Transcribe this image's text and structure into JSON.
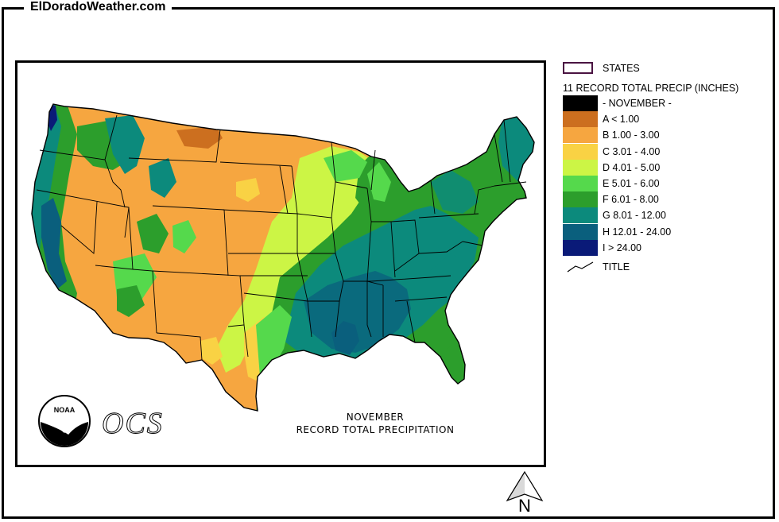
{
  "site_title": "ElDoradoWeather.com",
  "caption": {
    "line1": "NOVEMBER",
    "line2": "RECORD TOTAL PRECIPITATION"
  },
  "logos": {
    "noaa": "NOAA",
    "ocs": "OCS"
  },
  "legend": {
    "states_label": "STATES",
    "states_color": "#4a1442",
    "title": "11 RECORD TOTAL PRECIP (INCHES)",
    "items": [
      {
        "label": "- NOVEMBER -",
        "color": "#000000"
      },
      {
        "label": "A < 1.00",
        "color": "#cc6f1f"
      },
      {
        "label": "B 1.00 - 3.00",
        "color": "#f6a640"
      },
      {
        "label": "C 3.01 - 4.00",
        "color": "#f9d244"
      },
      {
        "label": "D 4.01 - 5.00",
        "color": "#ccf545"
      },
      {
        "label": "E 5.01 - 6.00",
        "color": "#55d94c"
      },
      {
        "label": "F 6.01 - 8.00",
        "color": "#2c9e2c"
      },
      {
        "label": "G 8.01 - 12.00",
        "color": "#0c8a7c"
      },
      {
        "label": "H 12.01 - 24.00",
        "color": "#0a5f7d"
      },
      {
        "label": "I > 24.00",
        "color": "#0a1a78"
      }
    ],
    "line_label": "TITLE"
  },
  "north_label": "N"
}
